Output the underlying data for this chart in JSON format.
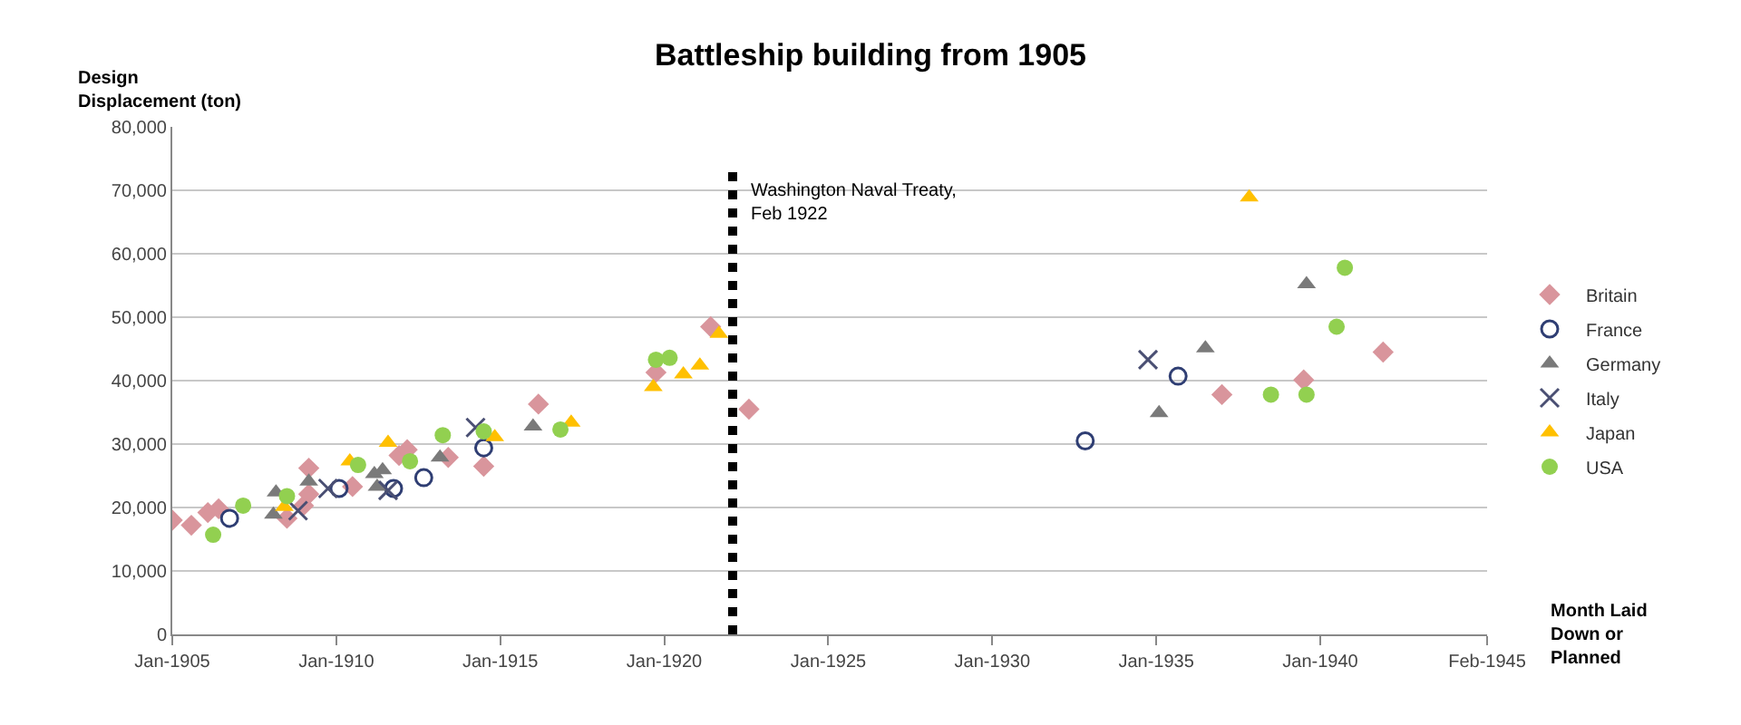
{
  "chart_data": {
    "type": "scatter",
    "title": "Battleship building from 1905",
    "ylabel": "Design\nDisplacement (ton)",
    "xlabel": "Month Laid\nDown or\nPlanned",
    "xlim": [
      "1905-01",
      "1945-02"
    ],
    "xticks": [
      {
        "value": "1905-01",
        "label": "Jan-1905"
      },
      {
        "value": "1910-01",
        "label": "Jan-1910"
      },
      {
        "value": "1915-01",
        "label": "Jan-1915"
      },
      {
        "value": "1920-01",
        "label": "Jan-1920"
      },
      {
        "value": "1925-01",
        "label": "Jan-1925"
      },
      {
        "value": "1930-01",
        "label": "Jan-1930"
      },
      {
        "value": "1935-01",
        "label": "Jan-1935"
      },
      {
        "value": "1940-01",
        "label": "Jan-1940"
      },
      {
        "value": "1945-02",
        "label": "Feb-1945"
      }
    ],
    "ylim": [
      0,
      80000
    ],
    "yticks": [
      0,
      {
        "value": 10000,
        "label": "10,000"
      },
      {
        "value": 20000,
        "label": "20,000"
      },
      {
        "value": 30000,
        "label": "30,000"
      },
      {
        "value": 40000,
        "label": "40,000"
      },
      {
        "value": 50000,
        "label": "50,000"
      },
      {
        "value": 60000,
        "label": "60,000"
      },
      {
        "value": 70000,
        "label": "70,000"
      },
      {
        "value": 80000,
        "label": "80,000"
      }
    ],
    "grid": "y",
    "legend": "right",
    "ref_lines": [
      {
        "axis": "x",
        "value": "1922-02",
        "label": "Washington Naval Treaty,\nFeb 1922",
        "color": "#000000",
        "line_style": "dotted"
      }
    ],
    "series": [
      {
        "name": "Britain",
        "color": "#d9959c",
        "marker": "diamond",
        "x": [
          "1905-01",
          "1905-08",
          "1906-02",
          "1906-06",
          "1908-07",
          "1909-01",
          "1909-03",
          "1909-03",
          "1910-07",
          "1911-12",
          "1912-03",
          "1913-06",
          "1914-07",
          "1916-03",
          "1919-10",
          "1921-06",
          "1922-08",
          "1937-01",
          "1939-07",
          "1941-12"
        ],
        "values": [
          18000,
          17200,
          19200,
          19800,
          18300,
          20300,
          22100,
          26200,
          23300,
          28200,
          29100,
          27900,
          26500,
          36300,
          41300,
          48500,
          35500,
          37800,
          40100,
          44500
        ]
      },
      {
        "name": "France",
        "color": "#2f3e73",
        "marker": "circle-open",
        "x": [
          "1906-10",
          "1910-02",
          "1911-10",
          "1912-09",
          "1914-07",
          "1932-11",
          "1935-09"
        ],
        "values": [
          18300,
          23000,
          23000,
          24700,
          29400,
          30500,
          40700
        ]
      },
      {
        "name": "Germany",
        "color": "#7a7a7a",
        "marker": "triangle",
        "x": [
          "1908-02",
          "1908-03",
          "1909-03",
          "1911-03",
          "1911-06",
          "1911-04",
          "1913-03",
          "1916-01",
          "1935-02",
          "1936-07",
          "1939-08"
        ],
        "values": [
          18900,
          22400,
          24100,
          25300,
          25900,
          23300,
          27900,
          32800,
          34900,
          45100,
          55200
        ]
      },
      {
        "name": "Italy",
        "color": "#4a4f73",
        "marker": "cross",
        "x": [
          "1908-11",
          "1909-10",
          "1911-08",
          "1914-04",
          "1934-10"
        ],
        "values": [
          19500,
          23000,
          22700,
          32600,
          43300
        ]
      },
      {
        "name": "Japan",
        "color": "#ffc000",
        "marker": "triangle",
        "x": [
          "1908-06",
          "1910-06",
          "1911-08",
          "1914-11",
          "1917-03",
          "1919-09",
          "1920-08",
          "1921-02",
          "1921-09",
          "1937-11"
        ],
        "values": [
          20100,
          27300,
          30200,
          31100,
          33400,
          39000,
          41000,
          42400,
          47400,
          68900
        ]
      },
      {
        "name": "USA",
        "color": "#92d050",
        "marker": "circle",
        "x": [
          "1906-04",
          "1907-03",
          "1908-07",
          "1910-09",
          "1912-04",
          "1913-04",
          "1914-07",
          "1916-11",
          "1919-10",
          "1920-03",
          "1938-07",
          "1939-08",
          "1940-07",
          "1940-10"
        ],
        "values": [
          15700,
          20300,
          21800,
          26700,
          27300,
          31400,
          32000,
          32300,
          43300,
          43600,
          37800,
          37800,
          48500,
          57800
        ]
      }
    ]
  }
}
